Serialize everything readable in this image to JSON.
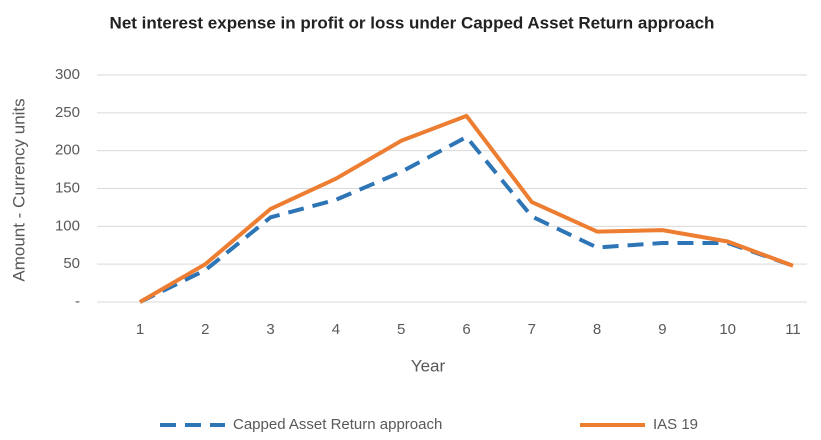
{
  "chart_data": {
    "type": "line",
    "title": "Net interest expense in profit or loss under Capped Asset Return approach",
    "x_label": "Year",
    "y_label": "Amount - Currency units",
    "categories": [
      "1",
      "2",
      "3",
      "4",
      "5",
      "6",
      "7",
      "8",
      "9",
      "10",
      "11"
    ],
    "series": [
      {
        "name": "Capped Asset Return approach",
        "color": "#2e75b6",
        "dashed": true,
        "values": [
          0,
          42,
          112,
          135,
          172,
          218,
          113,
          72,
          78,
          78,
          48
        ]
      },
      {
        "name": "IAS 19",
        "color": "#ed7d31",
        "dashed": false,
        "values": [
          0,
          50,
          123,
          163,
          213,
          246,
          132,
          93,
          95,
          80,
          48
        ]
      }
    ],
    "ylim": [
      0,
      300
    ],
    "yticks": [
      {
        "value": 0,
        "label": "-"
      },
      50,
      100,
      150,
      200,
      250,
      300
    ],
    "grid": true,
    "legend": "bottom"
  }
}
